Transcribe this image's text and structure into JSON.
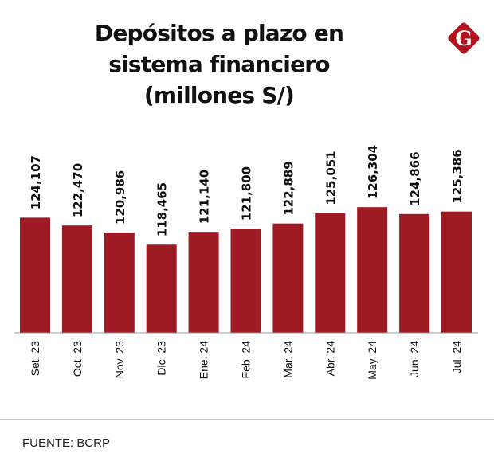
{
  "title": "Depósitos a plazo en sistema financiero (millones S/)",
  "logo_text": "G",
  "source": "FUENTE: BCRP",
  "colors": {
    "bar": "#9e1b24",
    "logo": "#b3121f",
    "axis": "#999999"
  },
  "chart_data": {
    "type": "bar",
    "title": "Depósitos a plazo en sistema financiero (millones S/)",
    "categories": [
      "Set. 23",
      "Oct. 23",
      "Nov. 23",
      "Dic. 23",
      "Ene. 24",
      "Feb. 24",
      "Mar. 24",
      "Abr. 24",
      "May. 24",
      "Jun. 24",
      "Jul. 24"
    ],
    "values": [
      124107,
      122470,
      120986,
      118465,
      121140,
      121800,
      122889,
      125051,
      126304,
      124866,
      125386
    ],
    "data_labels": [
      "124,107",
      "122,470",
      "120,986",
      "118,465",
      "121,140",
      "121,800",
      "122,889",
      "125,051",
      "126,304",
      "124,866",
      "125,386"
    ],
    "ylim": [
      100000,
      130000
    ],
    "grid": false,
    "legend": "none"
  }
}
